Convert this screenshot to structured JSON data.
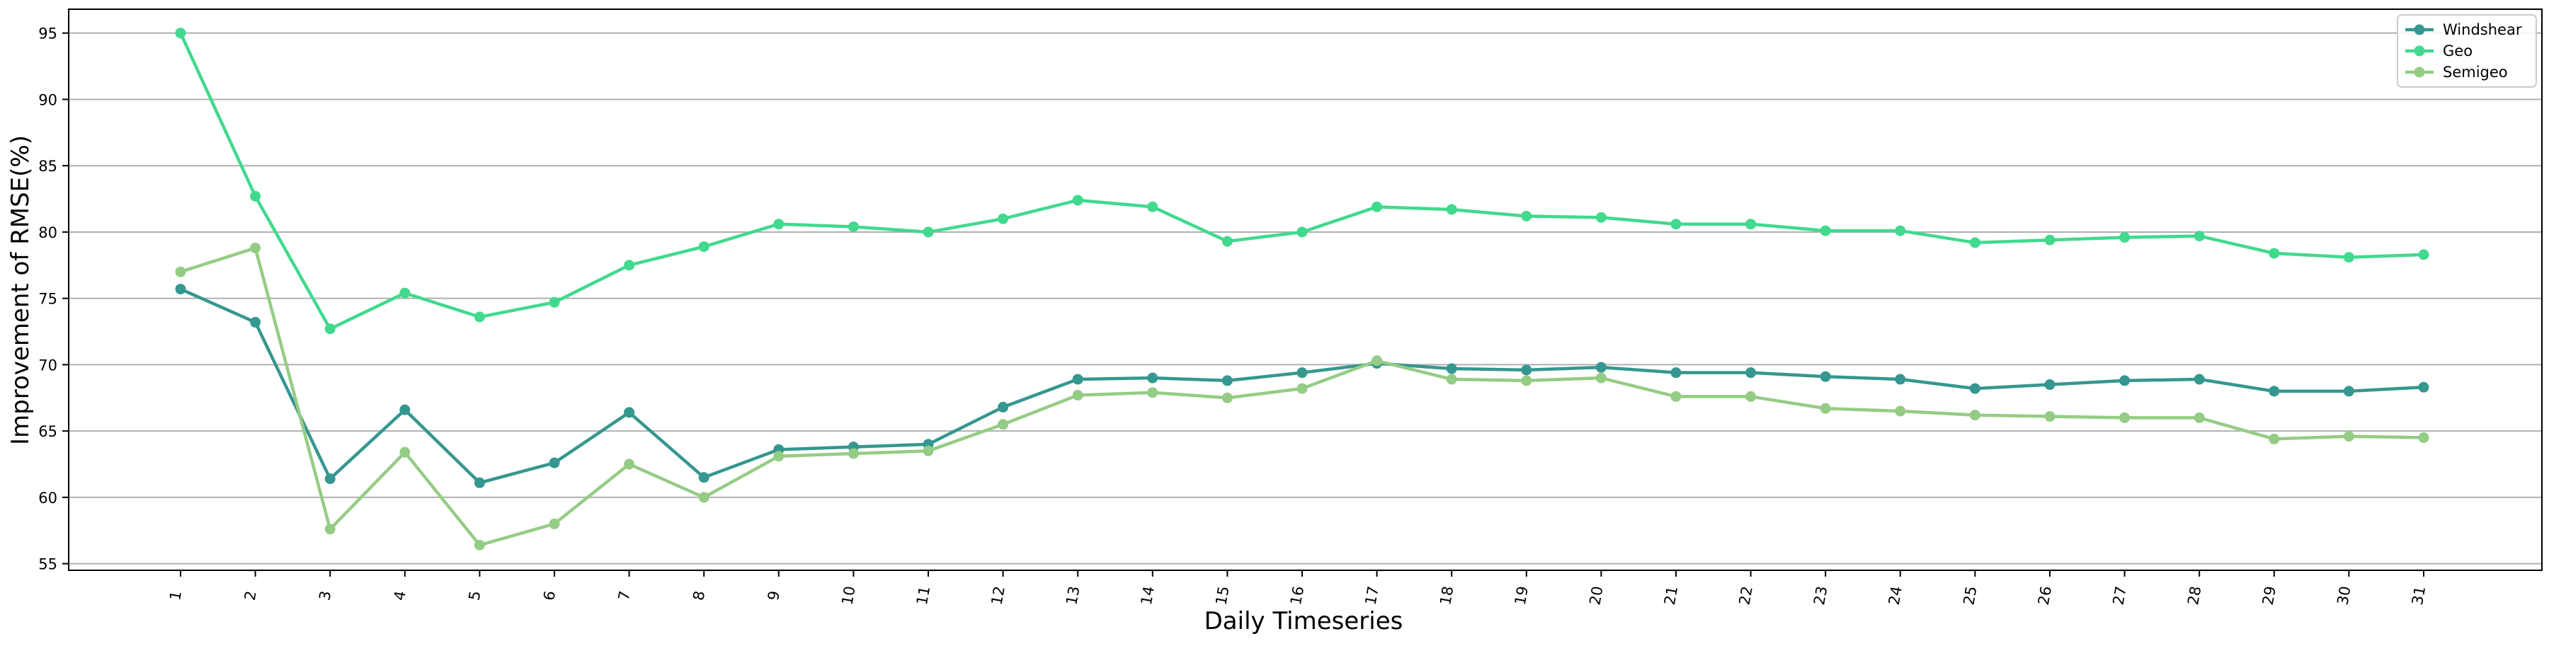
{
  "chart_data": {
    "type": "line",
    "title": "",
    "xlabel": "Daily Timeseries",
    "ylabel": "Improvement of RMSE(%)",
    "categories": [
      "1",
      "2",
      "3",
      "4",
      "5",
      "6",
      "7",
      "8",
      "9",
      "10",
      "11",
      "12",
      "13",
      "14",
      "15",
      "16",
      "17",
      "18",
      "19",
      "20",
      "21",
      "22",
      "23",
      "24",
      "25",
      "26",
      "27",
      "28",
      "29",
      "30",
      "31"
    ],
    "ylim": [
      54.5,
      96.8
    ],
    "yticks": [
      55,
      60,
      65,
      70,
      75,
      80,
      85,
      90,
      95
    ],
    "grid": "y",
    "legend": "top-right",
    "series": [
      {
        "name": "Windshear",
        "color": "#35978f",
        "values": [
          75.7,
          73.2,
          61.4,
          66.6,
          61.1,
          62.6,
          66.4,
          61.5,
          63.6,
          63.8,
          64.0,
          66.8,
          68.9,
          69.0,
          68.8,
          69.4,
          70.1,
          69.7,
          69.6,
          69.8,
          69.4,
          69.4,
          69.1,
          68.9,
          68.2,
          68.5,
          68.8,
          68.9,
          68.0,
          68.0,
          68.3
        ]
      },
      {
        "name": "Geo",
        "color": "#41d98e",
        "values": [
          95.0,
          82.7,
          72.7,
          75.4,
          73.6,
          74.7,
          77.5,
          78.9,
          80.6,
          80.4,
          80.0,
          81.0,
          82.4,
          81.9,
          79.3,
          80.0,
          81.9,
          81.7,
          81.2,
          81.1,
          80.6,
          80.6,
          80.1,
          80.1,
          79.2,
          79.4,
          79.6,
          79.7,
          78.4,
          78.1,
          78.3
        ]
      },
      {
        "name": "Semigeo",
        "color": "#95cc85",
        "values": [
          77.0,
          78.8,
          57.6,
          63.4,
          56.4,
          58.0,
          62.5,
          60.0,
          63.1,
          63.3,
          63.5,
          65.5,
          67.7,
          67.9,
          67.5,
          68.2,
          70.3,
          68.9,
          68.8,
          69.0,
          67.6,
          67.6,
          66.7,
          66.5,
          66.2,
          66.1,
          66.0,
          66.0,
          64.4,
          64.6,
          64.5
        ]
      }
    ]
  }
}
